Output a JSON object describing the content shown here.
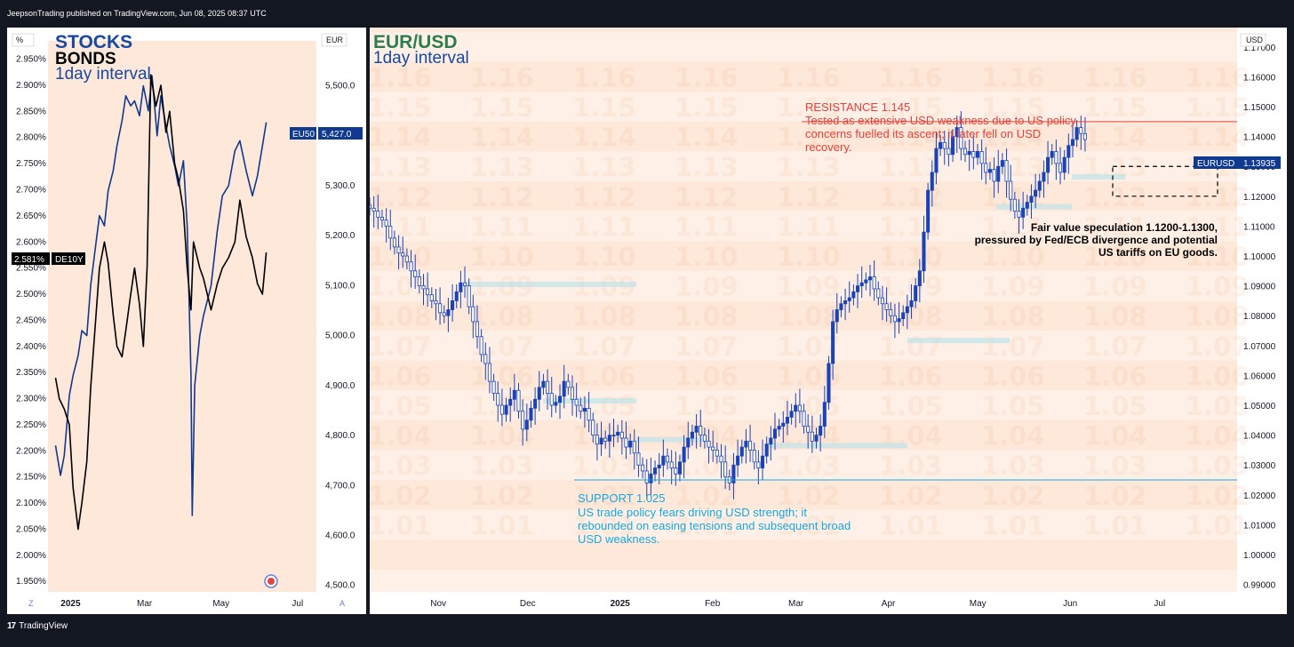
{
  "header": {
    "publisher": "JeepsonTrading published on TradingView.com, Jun 08, 2025 08:37 UTC"
  },
  "footer": {
    "brand": "TradingView",
    "logo": "tradingview-logo"
  },
  "colors": {
    "panel_bg": "#fde8d9",
    "frame_bg": "#131722",
    "eu50": "#0f3a8f",
    "de10y": "#000000",
    "green_title": "#2e7d4f",
    "blue_title": "#1848a0",
    "resistance": "#e8403a",
    "support": "#17a8e0",
    "candle_up": "#1a43b8",
    "candle_down": "#ffffff"
  },
  "chart_data": [
    {
      "type": "line",
      "title": "STOCKS",
      "subtitle": "BONDS",
      "interval": "1day interval",
      "left_axis": {
        "unit": "%",
        "ticks": [
          "2.950%",
          "2.900%",
          "2.850%",
          "2.800%",
          "2.750%",
          "2.700%",
          "2.650%",
          "2.600%",
          "2.550%",
          "2.500%",
          "2.450%",
          "2.400%",
          "2.350%",
          "2.300%",
          "2.250%",
          "2.200%",
          "2.150%",
          "2.100%",
          "2.050%",
          "2.000%",
          "1.950%"
        ],
        "range": [
          1.93,
          2.985
        ],
        "corner_left": "Z"
      },
      "right_axis": {
        "unit": "EUR",
        "ticks": [
          "5,500.0",
          "5,400.0",
          "5,300.0",
          "5,200.0",
          "5,100.0",
          "5,000.0",
          "4,900.0",
          "4,800.0",
          "4,700.0",
          "4,600.0",
          "4,500.0"
        ],
        "range": [
          4487,
          5590
        ],
        "corner_right": "A"
      },
      "x_ticks": [
        "2025",
        "Mar",
        "May",
        "Jul"
      ],
      "series": [
        {
          "name": "EU50",
          "last": "5,427.0",
          "axis": "right",
          "x": [
            "2024-12-20",
            "2024-12-24",
            "2024-12-27",
            "2024-12-31",
            "2025-01-03",
            "2025-01-07",
            "2025-01-10",
            "2025-01-14",
            "2025-01-17",
            "2025-01-21",
            "2025-01-24",
            "2025-01-28",
            "2025-01-31",
            "2025-02-04",
            "2025-02-07",
            "2025-02-11",
            "2025-02-14",
            "2025-02-18",
            "2025-02-21",
            "2025-02-25",
            "2025-02-28",
            "2025-03-04",
            "2025-03-07",
            "2025-03-11",
            "2025-03-14",
            "2025-03-18",
            "2025-03-21",
            "2025-03-25",
            "2025-03-28",
            "2025-04-01",
            "2025-04-04",
            "2025-04-07",
            "2025-04-08",
            "2025-04-10",
            "2025-04-14",
            "2025-04-17",
            "2025-04-23",
            "2025-04-28",
            "2025-05-02",
            "2025-05-07",
            "2025-05-12",
            "2025-05-16",
            "2025-05-21",
            "2025-05-26",
            "2025-05-30",
            "2025-06-03",
            "2025-06-06"
          ],
          "y": [
            4780,
            4720,
            4760,
            4880,
            4920,
            4960,
            5010,
            5000,
            5100,
            5180,
            5240,
            5220,
            5290,
            5330,
            5380,
            5430,
            5480,
            5460,
            5470,
            5440,
            5500,
            5450,
            5520,
            5400,
            5480,
            5420,
            5380,
            5340,
            5300,
            5350,
            5220,
            4920,
            4640,
            4900,
            5000,
            5040,
            5100,
            5210,
            5280,
            5300,
            5370,
            5390,
            5330,
            5280,
            5320,
            5380,
            5427
          ]
        },
        {
          "name": "DE10Y",
          "last": "2.581%",
          "axis": "left",
          "x": [
            "2024-12-20",
            "2024-12-23",
            "2024-12-27",
            "2024-12-31",
            "2025-01-03",
            "2025-01-07",
            "2025-01-10",
            "2025-01-14",
            "2025-01-17",
            "2025-01-21",
            "2025-01-24",
            "2025-01-28",
            "2025-01-31",
            "2025-02-04",
            "2025-02-07",
            "2025-02-11",
            "2025-02-14",
            "2025-02-18",
            "2025-02-21",
            "2025-02-25",
            "2025-02-28",
            "2025-03-03",
            "2025-03-05",
            "2025-03-06",
            "2025-03-10",
            "2025-03-14",
            "2025-03-18",
            "2025-03-21",
            "2025-03-25",
            "2025-03-28",
            "2025-04-01",
            "2025-04-04",
            "2025-04-07",
            "2025-04-09",
            "2025-04-14",
            "2025-04-17",
            "2025-04-23",
            "2025-04-28",
            "2025-05-02",
            "2025-05-07",
            "2025-05-12",
            "2025-05-16",
            "2025-05-21",
            "2025-05-26",
            "2025-05-30",
            "2025-06-03",
            "2025-06-06"
          ],
          "y": [
            2.34,
            2.3,
            2.28,
            2.25,
            2.13,
            2.05,
            2.1,
            2.18,
            2.32,
            2.45,
            2.55,
            2.6,
            2.56,
            2.46,
            2.4,
            2.38,
            2.43,
            2.5,
            2.55,
            2.48,
            2.4,
            2.55,
            2.8,
            2.92,
            2.86,
            2.9,
            2.81,
            2.85,
            2.75,
            2.72,
            2.66,
            2.55,
            2.47,
            2.6,
            2.55,
            2.53,
            2.47,
            2.52,
            2.55,
            2.57,
            2.6,
            2.68,
            2.61,
            2.57,
            2.52,
            2.5,
            2.58
          ]
        }
      ]
    },
    {
      "type": "candlestick",
      "title": "EUR/USD",
      "interval": "1day interval",
      "y_axis": {
        "unit": "USD",
        "ticks": [
          "1.17000",
          "1.16000",
          "1.15000",
          "1.14000",
          "1.13000",
          "1.12000",
          "1.11000",
          "1.10000",
          "1.09000",
          "1.08000",
          "1.07000",
          "1.06000",
          "1.05000",
          "1.04000",
          "1.03000",
          "1.02000",
          "1.01000",
          "1.00000",
          "0.99000"
        ],
        "range": [
          0.9875,
          1.1765
        ]
      },
      "x_ticks": [
        "Nov",
        "Dec",
        "2025",
        "Feb",
        "Mar",
        "Apr",
        "May",
        "Jun",
        "Jul"
      ],
      "last_price": {
        "symbol": "EURUSD",
        "value": "1.13935"
      },
      "watermark_levels": [
        "1.16",
        "1.15",
        "1.14",
        "1.13",
        "1.12",
        "1.11",
        "1.10",
        "1.09",
        "1.08",
        "1.07",
        "1.06",
        "1.05",
        "1.04",
        "1.03",
        "1.02",
        "1.01"
      ],
      "resistance": {
        "level": 1.145,
        "label": "RESISTANCE 1.145",
        "note": "Tested as extensive USD weakness due to US policy concerns fuelled its ascent; it later fell on USD recovery."
      },
      "support": {
        "level": 1.025,
        "label": "SUPPORT 1.025",
        "note": "US trade policy fears driving USD strength; it rebounded on easing tensions and subsequent broad USD weakness."
      },
      "fair_value": {
        "low": 1.12,
        "high": 1.13,
        "note": "Fair value speculation 1.1200-1.1300, pressured by Fed/ECB divergence and potential US tariffs on EU goods."
      },
      "daily_close": [
        1.116,
        1.115,
        1.113,
        1.112,
        1.11,
        1.106,
        1.103,
        1.101,
        1.1,
        1.098,
        1.095,
        1.093,
        1.09,
        1.089,
        1.087,
        1.085,
        1.084,
        1.081,
        1.08,
        1.082,
        1.085,
        1.088,
        1.091,
        1.09,
        1.083,
        1.078,
        1.073,
        1.067,
        1.064,
        1.058,
        1.054,
        1.05,
        1.047,
        1.05,
        1.052,
        1.055,
        1.048,
        1.042,
        1.045,
        1.049,
        1.052,
        1.056,
        1.058,
        1.054,
        1.05,
        1.051,
        1.053,
        1.058,
        1.056,
        1.052,
        1.05,
        1.048,
        1.049,
        1.045,
        1.04,
        1.037,
        1.039,
        1.038,
        1.04,
        1.04,
        1.041,
        1.039,
        1.036,
        1.038,
        1.034,
        1.03,
        1.028,
        1.024,
        1.027,
        1.029,
        1.03,
        1.033,
        1.031,
        1.029,
        1.027,
        1.031,
        1.036,
        1.039,
        1.041,
        1.043,
        1.04,
        1.038,
        1.036,
        1.035,
        1.033,
        1.031,
        1.026,
        1.024,
        1.03,
        1.033,
        1.036,
        1.038,
        1.035,
        1.031,
        1.029,
        1.033,
        1.037,
        1.039,
        1.042,
        1.043,
        1.044,
        1.046,
        1.048,
        1.05,
        1.048,
        1.043,
        1.041,
        1.038,
        1.04,
        1.043,
        1.051,
        1.064,
        1.078,
        1.082,
        1.084,
        1.085,
        1.086,
        1.088,
        1.09,
        1.091,
        1.092,
        1.093,
        1.089,
        1.086,
        1.084,
        1.082,
        1.08,
        1.078,
        1.079,
        1.081,
        1.083,
        1.085,
        1.09,
        1.095,
        1.108,
        1.122,
        1.128,
        1.136,
        1.138,
        1.136,
        1.134,
        1.14,
        1.143,
        1.136,
        1.134,
        1.135,
        1.133,
        1.135,
        1.131,
        1.128,
        1.129,
        1.125,
        1.13,
        1.132,
        1.125,
        1.119,
        1.115,
        1.113,
        1.116,
        1.118,
        1.12,
        1.122,
        1.125,
        1.128,
        1.133,
        1.135,
        1.131,
        1.128,
        1.133,
        1.137,
        1.139,
        1.143,
        1.141,
        1.139
      ]
    }
  ]
}
